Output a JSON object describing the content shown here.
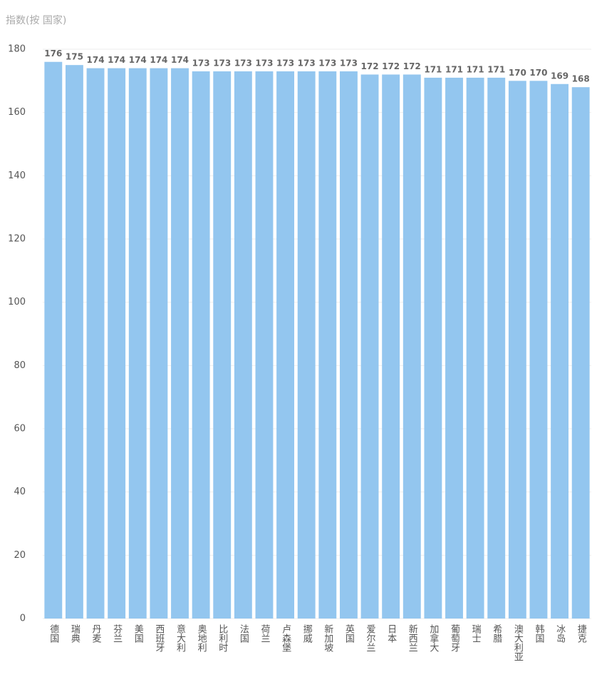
{
  "chart_data": {
    "type": "bar",
    "title": "指数(按 国家)",
    "categories": [
      "德国",
      "瑞典",
      "丹麦",
      "芬兰",
      "美国",
      "西班牙",
      "意大利",
      "奥地利",
      "比利时",
      "法国",
      "荷兰",
      "卢森堡",
      "挪威",
      "新加坡",
      "英国",
      "爱尔兰",
      "日本",
      "新西兰",
      "加拿大",
      "葡萄牙",
      "瑞士",
      "希腊",
      "澳大利亚",
      "韩国",
      "冰岛",
      "捷克"
    ],
    "values": [
      176,
      175,
      174,
      174,
      174,
      174,
      174,
      173,
      173,
      173,
      173,
      173,
      173,
      173,
      173,
      172,
      172,
      172,
      171,
      171,
      171,
      171,
      170,
      170,
      169,
      168
    ],
    "color": "#93c6ef",
    "ylim": [
      0,
      180
    ],
    "yticks": [
      0,
      20,
      40,
      60,
      80,
      100,
      120,
      140,
      160,
      180
    ],
    "grid": true
  }
}
